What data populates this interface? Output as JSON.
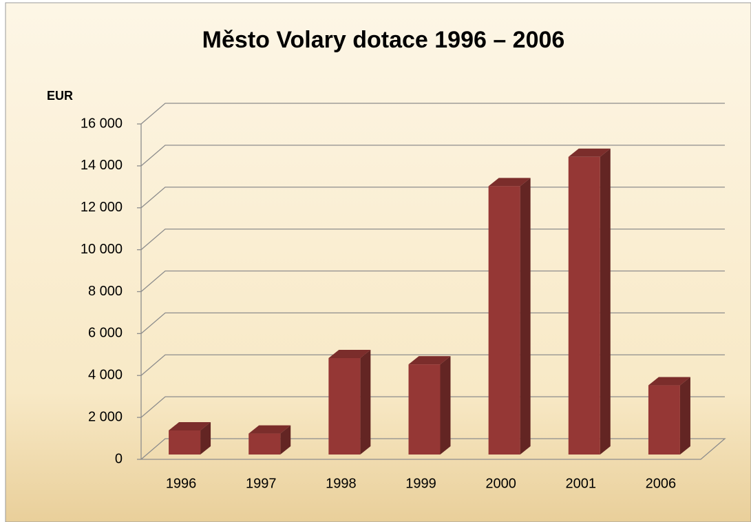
{
  "chart_data": {
    "type": "bar3d",
    "title": "Město Volary dotace 1996 – 2006",
    "y_label": "EUR",
    "categories": [
      "1996",
      "1997",
      "1998",
      "1999",
      "2000",
      "2001",
      "2006"
    ],
    "values": [
      1150,
      1000,
      4600,
      4300,
      12800,
      14200,
      3300
    ],
    "color": "#953735",
    "ylim": [
      0,
      16000
    ],
    "yticks": [
      0,
      {
        "value": 2000,
        "label": "2 000"
      },
      {
        "value": 4000,
        "label": "4 000"
      },
      {
        "value": 6000,
        "label": "6 000"
      },
      {
        "value": 8000,
        "label": "8 000"
      },
      {
        "value": 10000,
        "label": "10 000"
      },
      {
        "value": 12000,
        "label": "12 000"
      },
      {
        "value": 14000,
        "label": "14 000"
      },
      {
        "value": 16000,
        "label": "16 000"
      }
    ],
    "grid": true
  }
}
